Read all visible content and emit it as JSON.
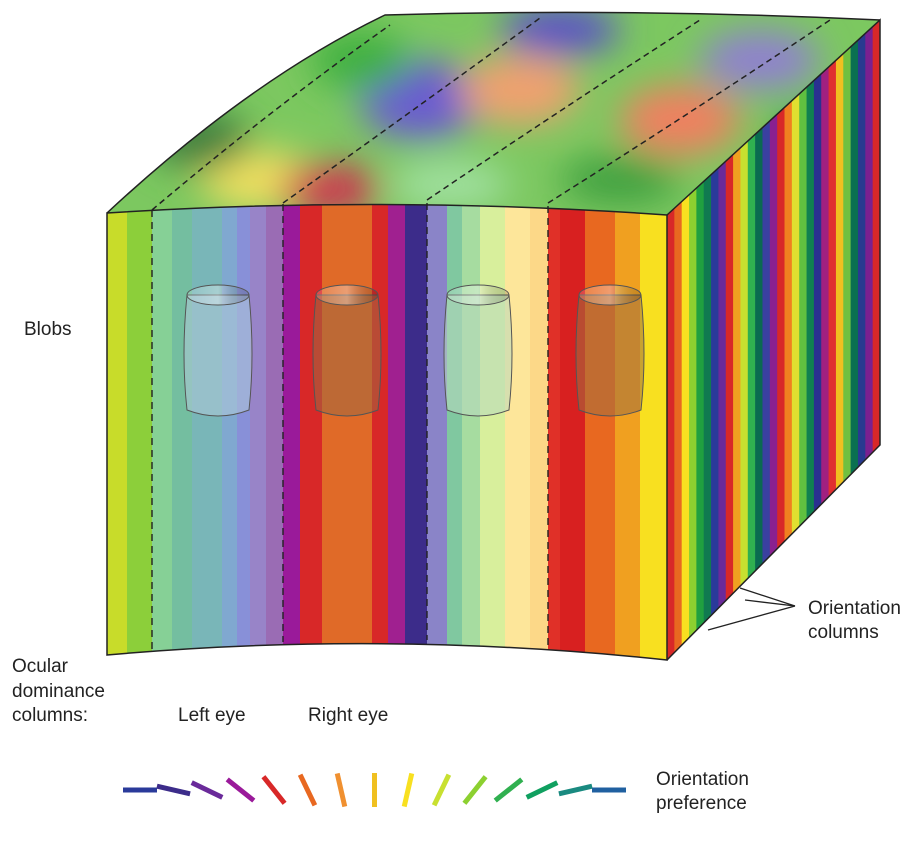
{
  "labels": {
    "blobs": "Blobs",
    "orientation_columns": [
      "Orientation",
      "columns"
    ],
    "ocular_dominance_columns": [
      "Ocular",
      "dominance",
      "columns:"
    ],
    "left_eye": "Left eye",
    "right_eye": "Right eye",
    "orientation_preference": [
      "Orientation",
      "preference"
    ]
  }
}
